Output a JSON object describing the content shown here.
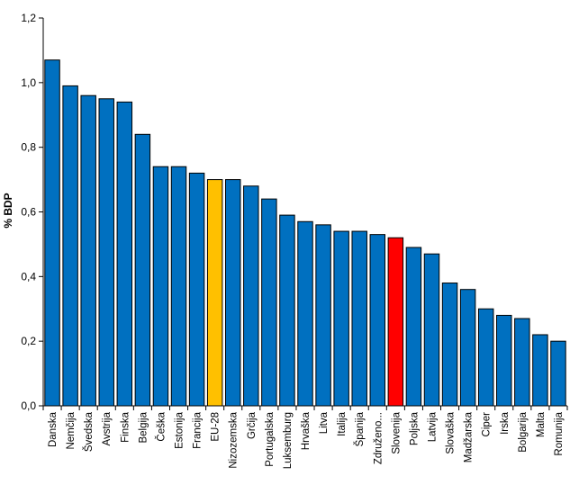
{
  "chart_data": {
    "type": "bar",
    "title": "",
    "xlabel": "",
    "ylabel": "% BDP",
    "ylim": [
      0,
      1.2
    ],
    "yticks": [
      "0,0",
      "0,2",
      "0,4",
      "0,6",
      "0,8",
      "1,0",
      "1,2"
    ],
    "grid": false,
    "legend": "none",
    "categories": [
      "Danska",
      "Nemčija",
      "Švedska",
      "Avstrija",
      "Finska",
      "Belgija",
      "Češka",
      "Estonija",
      "Francija",
      "EU-28",
      "Nizozemska",
      "Grčija",
      "Portugalska",
      "Luksemburg",
      "Hrvaška",
      "Litva",
      "Italija",
      "Španija",
      "Združeno...",
      "Slovenija",
      "Poljska",
      "Latvija",
      "Slovaška",
      "Madžarska",
      "Ciper",
      "Irska",
      "Bolgarija",
      "Malta",
      "Romunija"
    ],
    "values": [
      1.07,
      0.99,
      0.96,
      0.95,
      0.94,
      0.84,
      0.74,
      0.74,
      0.72,
      0.7,
      0.7,
      0.68,
      0.64,
      0.59,
      0.57,
      0.56,
      0.54,
      0.54,
      0.53,
      0.52,
      0.49,
      0.47,
      0.38,
      0.36,
      0.3,
      0.28,
      0.27,
      0.22,
      0.2
    ],
    "colors": {
      "default": "#0070c0",
      "highlight_eu": "#ffc000",
      "highlight_si": "#ff0000",
      "outline": "#000000"
    },
    "highlight": {
      "EU-28": "highlight_eu",
      "Slovenija": "highlight_si"
    }
  }
}
